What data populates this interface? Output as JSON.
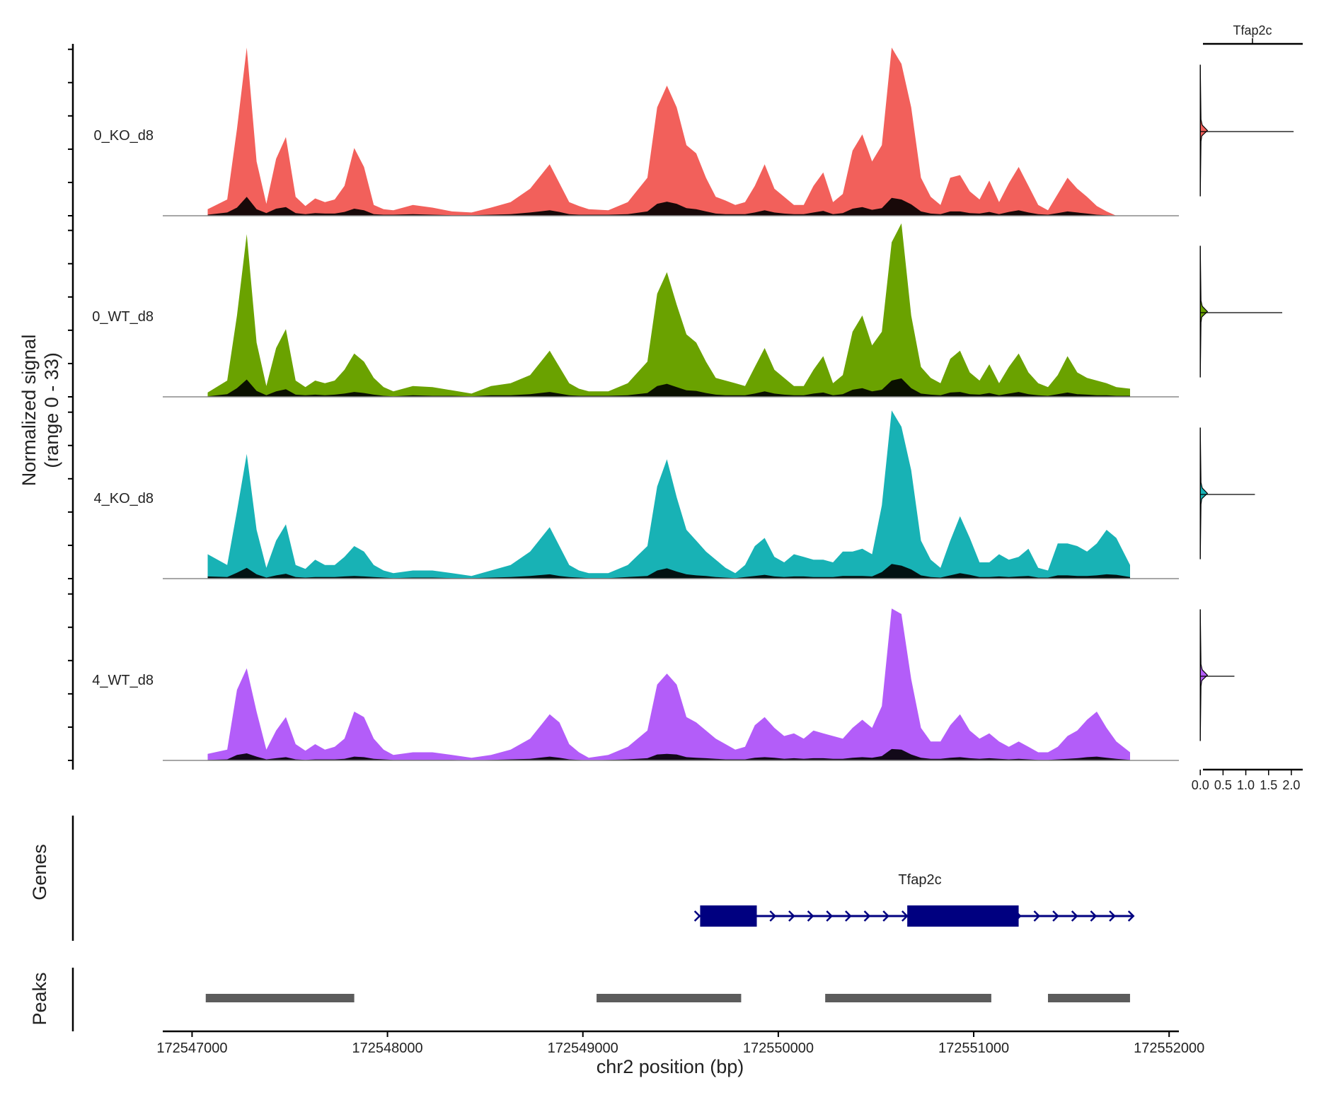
{
  "chart_data": {
    "type": "area",
    "xlabel": "chr2 position (bp)",
    "ylabel_line1": "Normalized signal",
    "ylabel_line2": "(range 0 - 33)",
    "xlim": [
      172546850,
      172552050
    ],
    "ylim": [
      0,
      33
    ],
    "x_ticks": [
      "172547000",
      "172548000",
      "172549000",
      "172550000",
      "172551000",
      "172552000"
    ],
    "x_tick_values": [
      172547000,
      172548000,
      172549000,
      172550000,
      172551000,
      172552000
    ],
    "x_sampled": [
      172547080,
      172547180,
      172547230,
      172547280,
      172547330,
      172547380,
      172547430,
      172547480,
      172547530,
      172547580,
      172547630,
      172547680,
      172547730,
      172547780,
      172547830,
      172547880,
      172547930,
      172547980,
      172548030,
      172548130,
      172548230,
      172548330,
      172548430,
      172548530,
      172548630,
      172548730,
      172548830,
      172548880,
      172548930,
      172548980,
      172549030,
      172549130,
      172549230,
      172549330,
      172549380,
      172549430,
      172549480,
      172549530,
      172549580,
      172549630,
      172549680,
      172549730,
      172549780,
      172549830,
      172549880,
      172549930,
      172549980,
      172550030,
      172550080,
      172550130,
      172550180,
      172550230,
      172550280,
      172550330,
      172550380,
      172550430,
      172550480,
      172550530,
      172550580,
      172550630,
      172550680,
      172550730,
      172550780,
      172550830,
      172550880,
      172550930,
      172550980,
      172551030,
      172551080,
      172551130,
      172551180,
      172551230,
      172551280,
      172551330,
      172551380,
      172551430,
      172551480,
      172551530,
      172551580,
      172551630,
      172551680,
      172551730,
      172551800
    ],
    "series": [
      {
        "name": "0_KO_d8",
        "color": "#F2605B",
        "values": [
          1.2,
          3,
          16,
          31,
          10,
          2.2,
          10.5,
          14.5,
          3.5,
          1.8,
          3.2,
          2.5,
          3,
          5.5,
          12.5,
          9,
          2,
          1.2,
          1,
          2,
          1.5,
          0.8,
          0.6,
          1.5,
          2.5,
          5,
          9.5,
          6,
          2.5,
          1.8,
          1.2,
          1,
          2.5,
          7,
          20,
          24,
          20,
          13,
          11.5,
          7,
          3.5,
          2.8,
          2,
          2.5,
          5.5,
          9.5,
          5,
          3.5,
          2,
          2,
          5.5,
          8,
          2.5,
          4,
          12,
          15,
          10,
          13,
          31,
          28,
          20,
          7,
          3.5,
          2,
          7,
          7.5,
          4.5,
          3,
          6.5,
          2.5,
          6,
          9,
          5.5,
          2,
          1,
          4,
          7,
          5,
          3.5,
          1.8,
          0.8,
          0,
          0
        ],
        "overlay_values": [
          0.2,
          0.6,
          1.5,
          3.5,
          1.2,
          0.5,
          1.3,
          1.6,
          0.5,
          0.3,
          0.5,
          0.4,
          0.4,
          0.7,
          1.3,
          1,
          0.3,
          0.2,
          0.2,
          0.3,
          0.2,
          0.1,
          0.1,
          0.2,
          0.3,
          0.6,
          1,
          0.7,
          0.3,
          0.2,
          0.2,
          0.2,
          0.3,
          0.8,
          2.2,
          2.6,
          2.2,
          1.4,
          1.2,
          0.8,
          0.4,
          0.3,
          0.3,
          0.3,
          0.6,
          1,
          0.6,
          0.4,
          0.3,
          0.3,
          0.6,
          0.9,
          0.3,
          0.5,
          1.3,
          1.6,
          1.1,
          1.4,
          3.3,
          3,
          2.1,
          0.8,
          0.4,
          0.3,
          0.8,
          0.8,
          0.5,
          0.4,
          0.7,
          0.3,
          0.7,
          1,
          0.6,
          0.3,
          0.2,
          0.5,
          0.8,
          0.6,
          0.4,
          0.2,
          0.1,
          0,
          0
        ]
      },
      {
        "name": "0_WT_d8",
        "color": "#6AA200",
        "values": [
          0.8,
          3,
          15,
          30,
          10,
          2,
          9,
          12.5,
          3,
          1.8,
          3,
          2.5,
          3,
          5,
          8,
          6.5,
          3.5,
          1.8,
          1,
          2,
          1.8,
          1.2,
          0.6,
          2,
          2.5,
          4,
          8.5,
          5.5,
          2.5,
          1.5,
          1,
          1,
          2.5,
          6.5,
          19,
          23,
          17,
          11.5,
          10,
          6.5,
          3.5,
          3,
          2.5,
          2,
          5.5,
          9,
          5,
          3.5,
          2,
          2,
          5,
          7.5,
          2.5,
          4,
          12,
          15,
          9.5,
          12,
          28.5,
          32,
          15,
          5.5,
          3.5,
          2.5,
          7,
          8.5,
          4.5,
          3,
          6,
          2.5,
          5.5,
          8,
          4.5,
          2.5,
          1.8,
          4,
          7.5,
          4.5,
          3.5,
          3,
          2.5,
          1.8,
          1.5
        ],
        "overlay_values": [
          0.1,
          0.5,
          1.6,
          3.2,
          1.1,
          0.3,
          1,
          1.4,
          0.4,
          0.3,
          0.4,
          0.3,
          0.4,
          0.6,
          0.9,
          0.7,
          0.4,
          0.2,
          0.1,
          0.3,
          0.2,
          0.2,
          0.1,
          0.3,
          0.3,
          0.5,
          0.9,
          0.6,
          0.3,
          0.2,
          0.2,
          0.2,
          0.3,
          0.7,
          2,
          2.4,
          1.8,
          1.2,
          1.1,
          0.7,
          0.4,
          0.3,
          0.3,
          0.3,
          0.6,
          1,
          0.6,
          0.4,
          0.3,
          0.3,
          0.6,
          0.8,
          0.3,
          0.5,
          1.3,
          1.6,
          1,
          1.3,
          3,
          3.4,
          1.6,
          0.6,
          0.4,
          0.3,
          0.8,
          0.9,
          0.5,
          0.4,
          0.7,
          0.3,
          0.6,
          0.9,
          0.5,
          0.3,
          0.2,
          0.5,
          0.8,
          0.5,
          0.4,
          0.3,
          0.3,
          0.2,
          0.2
        ]
      },
      {
        "name": "4_KO_d8",
        "color": "#18B2B5",
        "values": [
          4.5,
          2.5,
          12.5,
          23,
          9,
          2,
          7,
          10,
          2.5,
          1.8,
          3.5,
          2.5,
          2.5,
          4,
          6,
          5,
          2.5,
          1.5,
          1,
          1.5,
          1.5,
          1,
          0.5,
          1.5,
          2.5,
          5,
          9.5,
          6,
          2.5,
          1.5,
          1,
          1,
          2.5,
          6,
          17,
          22,
          15,
          9,
          7,
          5,
          3.5,
          2,
          1,
          2.5,
          6,
          7.5,
          4,
          3,
          4.5,
          4,
          3.5,
          3.5,
          3,
          5,
          5,
          5.5,
          4.5,
          13.5,
          31,
          28,
          20,
          7,
          3.5,
          2,
          7,
          11.5,
          7.5,
          3,
          3,
          4.5,
          3.5,
          4,
          5.5,
          2,
          1.5,
          6.5,
          6.5,
          6,
          5,
          6.5,
          9,
          7.5,
          2.5
        ],
        "overlay_values": [
          0.4,
          0.3,
          1.1,
          2,
          0.8,
          0.2,
          0.6,
          0.9,
          0.3,
          0.2,
          0.3,
          0.3,
          0.3,
          0.4,
          0.5,
          0.4,
          0.3,
          0.2,
          0.1,
          0.2,
          0.2,
          0.1,
          0.1,
          0.2,
          0.3,
          0.5,
          0.8,
          0.5,
          0.3,
          0.2,
          0.1,
          0.1,
          0.3,
          0.5,
          1.5,
          1.9,
          1.3,
          0.8,
          0.6,
          0.5,
          0.3,
          0.2,
          0.1,
          0.3,
          0.5,
          0.7,
          0.4,
          0.3,
          0.4,
          0.4,
          0.3,
          0.3,
          0.3,
          0.5,
          0.5,
          0.5,
          0.4,
          1.2,
          2.7,
          2.4,
          1.7,
          0.6,
          0.3,
          0.2,
          0.6,
          1,
          0.7,
          0.3,
          0.3,
          0.4,
          0.3,
          0.4,
          0.5,
          0.2,
          0.2,
          0.6,
          0.6,
          0.5,
          0.5,
          0.6,
          0.8,
          0.7,
          0.3
        ]
      },
      {
        "name": "4_WT_d8",
        "color": "#B35DF9",
        "values": [
          1.2,
          2,
          13,
          17,
          9,
          2,
          5.5,
          8,
          3,
          1.8,
          3,
          2,
          2.5,
          4,
          9,
          8,
          4,
          2,
          1,
          1.5,
          1.5,
          1,
          0.5,
          1,
          2,
          4,
          8.5,
          7,
          3,
          1.5,
          0.5,
          1,
          2.5,
          5.5,
          14,
          16,
          14,
          8,
          7,
          5.5,
          4,
          3,
          2,
          2.5,
          6.5,
          8,
          6,
          4.5,
          5,
          4,
          5.5,
          5,
          4.5,
          4,
          6,
          7.5,
          6,
          10,
          28,
          27,
          15,
          6,
          3.5,
          3.5,
          6.5,
          8.5,
          5.5,
          4,
          5,
          3.5,
          2.5,
          3.5,
          2.5,
          1.5,
          1.5,
          2.5,
          4.5,
          5.5,
          7.5,
          9,
          6,
          3.5,
          1.5
        ],
        "overlay_values": [
          0.1,
          0.2,
          1,
          1.3,
          0.7,
          0.2,
          0.4,
          0.6,
          0.2,
          0.1,
          0.2,
          0.2,
          0.2,
          0.3,
          0.7,
          0.6,
          0.3,
          0.2,
          0.1,
          0.1,
          0.1,
          0.1,
          0,
          0.1,
          0.2,
          0.3,
          0.7,
          0.5,
          0.2,
          0.1,
          0,
          0.1,
          0.2,
          0.4,
          1.1,
          1.2,
          1.1,
          0.6,
          0.5,
          0.4,
          0.3,
          0.2,
          0.2,
          0.2,
          0.5,
          0.6,
          0.5,
          0.3,
          0.4,
          0.3,
          0.4,
          0.4,
          0.3,
          0.3,
          0.5,
          0.6,
          0.5,
          0.8,
          2.1,
          2,
          1.1,
          0.5,
          0.3,
          0.3,
          0.5,
          0.6,
          0.4,
          0.3,
          0.4,
          0.3,
          0.2,
          0.3,
          0.2,
          0.1,
          0.1,
          0.2,
          0.3,
          0.4,
          0.6,
          0.7,
          0.5,
          0.3,
          0.1
        ]
      }
    ],
    "expression": {
      "gene": "Tfap2c",
      "x_ticks": [
        "0.0",
        "0.5",
        "1.0",
        "1.5",
        "2.0"
      ],
      "x_tick_values": [
        0,
        0.5,
        1,
        1.5,
        2
      ],
      "xlim": [
        -0.05,
        2.25
      ],
      "groups": [
        {
          "name": "0_KO_d8",
          "max": 2.05
        },
        {
          "name": "0_WT_d8",
          "max": 1.8
        },
        {
          "name": "4_KO_d8",
          "max": 1.2
        },
        {
          "name": "4_WT_d8",
          "max": 0.75
        }
      ]
    },
    "genes_track": {
      "label": "Genes",
      "gene_name": "Tfap2c",
      "color": "#000080",
      "start": 172549590,
      "end": 172551810,
      "exons": [
        [
          172549600,
          172549890
        ],
        [
          172550660,
          172551230
        ]
      ],
      "arrow_direction": "right"
    },
    "peaks_track": {
      "label": "Peaks",
      "color": "#5C5C5C",
      "peaks": [
        [
          172547070,
          172547830
        ],
        [
          172549070,
          172549810
        ],
        [
          172550240,
          172551090
        ],
        [
          172551380,
          172551800
        ]
      ]
    }
  }
}
